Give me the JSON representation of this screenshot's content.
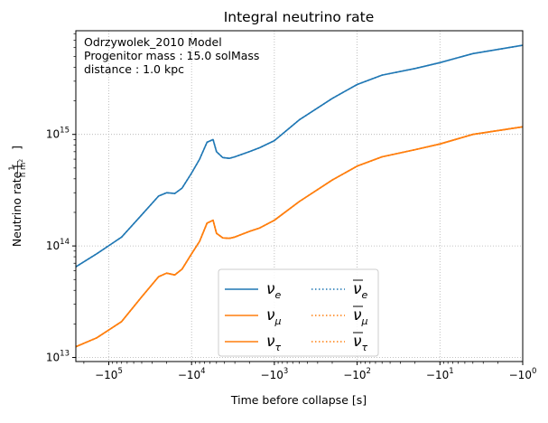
{
  "chart_data": {
    "type": "line",
    "title": "Integral neutrino rate",
    "xlabel": "Time before collapse [s]",
    "ylabel": {
      "prefix": "Neutrino rate [",
      "frac_num": "1",
      "frac_den": "h m",
      "frac_den_exp": "2",
      "suffix": "]"
    },
    "x_scale": "symlog-negative",
    "xlim": [
      -250000,
      -1
    ],
    "ylim": [
      9200000000000.0,
      8500000000000000.0
    ],
    "y_scale": "log",
    "grid": true,
    "x_ticks": [
      {
        "value": -100000,
        "base": "−10",
        "exp": "5"
      },
      {
        "value": -10000,
        "base": "−10",
        "exp": "4"
      },
      {
        "value": -1000,
        "base": "−10",
        "exp": "3"
      },
      {
        "value": -100,
        "base": "−10",
        "exp": "2"
      },
      {
        "value": -10,
        "base": "−10",
        "exp": "1"
      },
      {
        "value": -1,
        "base": "−10",
        "exp": "0"
      }
    ],
    "y_ticks": [
      {
        "value": 10000000000000.0,
        "base": "10",
        "exp": "13"
      },
      {
        "value": 100000000000000.0,
        "base": "10",
        "exp": "14"
      },
      {
        "value": 1000000000000000.0,
        "base": "10",
        "exp": "15"
      }
    ],
    "annotation": [
      "Odrzywolek_2010 Model",
      "Progenitor mass  : 15.0 solMass",
      "distance : 1.0 kpc"
    ],
    "legend": {
      "placement": "lower center",
      "columns": 2,
      "entries": [
        {
          "series": 0,
          "sym": "ν",
          "sub": "e",
          "bar": false
        },
        {
          "series": 1,
          "sym": "ν",
          "sub": "e",
          "bar": true
        },
        {
          "series": 2,
          "sym": "ν",
          "sub": "μ",
          "bar": false
        },
        {
          "series": 3,
          "sym": "ν",
          "sub": "μ",
          "bar": true
        },
        {
          "series": 4,
          "sym": "ν",
          "sub": "τ",
          "bar": false
        },
        {
          "series": 5,
          "sym": "ν",
          "sub": "τ",
          "bar": true
        }
      ]
    },
    "series": [
      {
        "key": "nu_e",
        "color": "#1f77b4",
        "style": "solid",
        "points": [
          [
            -250000,
            65000000000000.0
          ],
          [
            -140000,
            85000000000000.0
          ],
          [
            -70000,
            120000000000000.0
          ],
          [
            -40000,
            190000000000000.0
          ],
          [
            -25000,
            280000000000000.0
          ],
          [
            -20000,
            300000000000000.0
          ],
          [
            -16000,
            295000000000000.0
          ],
          [
            -13000,
            330000000000000.0
          ],
          [
            -10000,
            450000000000000.0
          ],
          [
            -8000,
            600000000000000.0
          ],
          [
            -6500,
            850000000000000.0
          ],
          [
            -5500,
            900000000000000.0
          ],
          [
            -5000,
            700000000000000.0
          ],
          [
            -4200,
            620000000000000.0
          ],
          [
            -3500,
            610000000000000.0
          ],
          [
            -3000,
            630000000000000.0
          ],
          [
            -2000,
            700000000000000.0
          ],
          [
            -1500,
            760000000000000.0
          ],
          [
            -1000,
            880000000000000.0
          ],
          [
            -500,
            1350000000000000.0
          ],
          [
            -200,
            2100000000000000.0
          ],
          [
            -100,
            2800000000000000.0
          ],
          [
            -50,
            3400000000000000.0
          ],
          [
            -20,
            3900000000000000.0
          ],
          [
            -10,
            4400000000000000.0
          ],
          [
            -4,
            5300000000000000.0
          ],
          [
            -1,
            6300000000000000.0
          ]
        ]
      },
      {
        "key": "nu_e_bar",
        "color": "#1f77b4",
        "style": "dotted",
        "points": [
          [
            -250000,
            65000000000000.0
          ],
          [
            -140000,
            85000000000000.0
          ],
          [
            -70000,
            120000000000000.0
          ],
          [
            -40000,
            190000000000000.0
          ],
          [
            -25000,
            280000000000000.0
          ],
          [
            -20000,
            300000000000000.0
          ],
          [
            -16000,
            295000000000000.0
          ],
          [
            -13000,
            330000000000000.0
          ],
          [
            -10000,
            450000000000000.0
          ],
          [
            -8000,
            600000000000000.0
          ],
          [
            -6500,
            850000000000000.0
          ],
          [
            -5500,
            900000000000000.0
          ],
          [
            -5000,
            700000000000000.0
          ],
          [
            -4200,
            620000000000000.0
          ],
          [
            -3500,
            610000000000000.0
          ],
          [
            -3000,
            630000000000000.0
          ],
          [
            -2000,
            700000000000000.0
          ],
          [
            -1500,
            760000000000000.0
          ],
          [
            -1000,
            880000000000000.0
          ],
          [
            -500,
            1350000000000000.0
          ],
          [
            -200,
            2100000000000000.0
          ],
          [
            -100,
            2800000000000000.0
          ],
          [
            -50,
            3400000000000000.0
          ],
          [
            -20,
            3900000000000000.0
          ],
          [
            -10,
            4400000000000000.0
          ],
          [
            -4,
            5300000000000000.0
          ],
          [
            -1,
            6300000000000000.0
          ]
        ]
      },
      {
        "key": "nu_mu",
        "color": "#ff7f0e",
        "style": "solid",
        "points": [
          [
            -250000,
            12500000000000.0
          ],
          [
            -140000,
            15000000000000.0
          ],
          [
            -70000,
            21000000000000.0
          ],
          [
            -40000,
            35000000000000.0
          ],
          [
            -25000,
            53000000000000.0
          ],
          [
            -20000,
            57000000000000.0
          ],
          [
            -16000,
            55000000000000.0
          ],
          [
            -13000,
            62000000000000.0
          ],
          [
            -10000,
            85000000000000.0
          ],
          [
            -8000,
            110000000000000.0
          ],
          [
            -6500,
            160000000000000.0
          ],
          [
            -5500,
            170000000000000.0
          ],
          [
            -5000,
            130000000000000.0
          ],
          [
            -4200,
            118000000000000.0
          ],
          [
            -3500,
            117000000000000.0
          ],
          [
            -3000,
            120000000000000.0
          ],
          [
            -2000,
            135000000000000.0
          ],
          [
            -1500,
            145000000000000.0
          ],
          [
            -1000,
            170000000000000.0
          ],
          [
            -500,
            250000000000000.0
          ],
          [
            -200,
            390000000000000.0
          ],
          [
            -100,
            520000000000000.0
          ],
          [
            -50,
            630000000000000.0
          ],
          [
            -20,
            730000000000000.0
          ],
          [
            -10,
            820000000000000.0
          ],
          [
            -4,
            1000000000000000.0
          ],
          [
            -1,
            1170000000000000.0
          ]
        ]
      },
      {
        "key": "nu_mu_bar",
        "color": "#ff7f0e",
        "style": "dotted",
        "points": [
          [
            -250000,
            12500000000000.0
          ],
          [
            -140000,
            15000000000000.0
          ],
          [
            -70000,
            21000000000000.0
          ],
          [
            -40000,
            35000000000000.0
          ],
          [
            -25000,
            53000000000000.0
          ],
          [
            -20000,
            57000000000000.0
          ],
          [
            -16000,
            55000000000000.0
          ],
          [
            -13000,
            62000000000000.0
          ],
          [
            -10000,
            85000000000000.0
          ],
          [
            -8000,
            110000000000000.0
          ],
          [
            -6500,
            160000000000000.0
          ],
          [
            -5500,
            170000000000000.0
          ],
          [
            -5000,
            130000000000000.0
          ],
          [
            -4200,
            118000000000000.0
          ],
          [
            -3500,
            117000000000000.0
          ],
          [
            -3000,
            120000000000000.0
          ],
          [
            -2000,
            135000000000000.0
          ],
          [
            -1500,
            145000000000000.0
          ],
          [
            -1000,
            170000000000000.0
          ],
          [
            -500,
            250000000000000.0
          ],
          [
            -200,
            390000000000000.0
          ],
          [
            -100,
            520000000000000.0
          ],
          [
            -50,
            630000000000000.0
          ],
          [
            -20,
            730000000000000.0
          ],
          [
            -10,
            820000000000000.0
          ],
          [
            -4,
            1000000000000000.0
          ],
          [
            -1,
            1170000000000000.0
          ]
        ]
      },
      {
        "key": "nu_tau",
        "color": "#ff7f0e",
        "style": "solid",
        "points": [
          [
            -250000,
            12500000000000.0
          ],
          [
            -140000,
            15000000000000.0
          ],
          [
            -70000,
            21000000000000.0
          ],
          [
            -40000,
            35000000000000.0
          ],
          [
            -25000,
            53000000000000.0
          ],
          [
            -20000,
            57000000000000.0
          ],
          [
            -16000,
            55000000000000.0
          ],
          [
            -13000,
            62000000000000.0
          ],
          [
            -10000,
            85000000000000.0
          ],
          [
            -8000,
            110000000000000.0
          ],
          [
            -6500,
            160000000000000.0
          ],
          [
            -5500,
            170000000000000.0
          ],
          [
            -5000,
            130000000000000.0
          ],
          [
            -4200,
            118000000000000.0
          ],
          [
            -3500,
            117000000000000.0
          ],
          [
            -3000,
            120000000000000.0
          ],
          [
            -2000,
            135000000000000.0
          ],
          [
            -1500,
            145000000000000.0
          ],
          [
            -1000,
            170000000000000.0
          ],
          [
            -500,
            250000000000000.0
          ],
          [
            -200,
            390000000000000.0
          ],
          [
            -100,
            520000000000000.0
          ],
          [
            -50,
            630000000000000.0
          ],
          [
            -20,
            730000000000000.0
          ],
          [
            -10,
            820000000000000.0
          ],
          [
            -4,
            1000000000000000.0
          ],
          [
            -1,
            1170000000000000.0
          ]
        ]
      },
      {
        "key": "nu_tau_bar",
        "color": "#ff7f0e",
        "style": "dotted",
        "points": [
          [
            -250000,
            12500000000000.0
          ],
          [
            -140000,
            15000000000000.0
          ],
          [
            -70000,
            21000000000000.0
          ],
          [
            -40000,
            35000000000000.0
          ],
          [
            -25000,
            53000000000000.0
          ],
          [
            -20000,
            57000000000000.0
          ],
          [
            -16000,
            55000000000000.0
          ],
          [
            -13000,
            62000000000000.0
          ],
          [
            -10000,
            85000000000000.0
          ],
          [
            -8000,
            110000000000000.0
          ],
          [
            -6500,
            160000000000000.0
          ],
          [
            -5500,
            170000000000000.0
          ],
          [
            -5000,
            130000000000000.0
          ],
          [
            -4200,
            118000000000000.0
          ],
          [
            -3500,
            117000000000000.0
          ],
          [
            -3000,
            120000000000000.0
          ],
          [
            -2000,
            135000000000000.0
          ],
          [
            -1500,
            145000000000000.0
          ],
          [
            -1000,
            170000000000000.0
          ],
          [
            -500,
            250000000000000.0
          ],
          [
            -200,
            390000000000000.0
          ],
          [
            -100,
            520000000000000.0
          ],
          [
            -50,
            630000000000000.0
          ],
          [
            -20,
            730000000000000.0
          ],
          [
            -10,
            820000000000000.0
          ],
          [
            -4,
            1000000000000000.0
          ],
          [
            -1,
            1170000000000000.0
          ]
        ]
      }
    ]
  }
}
